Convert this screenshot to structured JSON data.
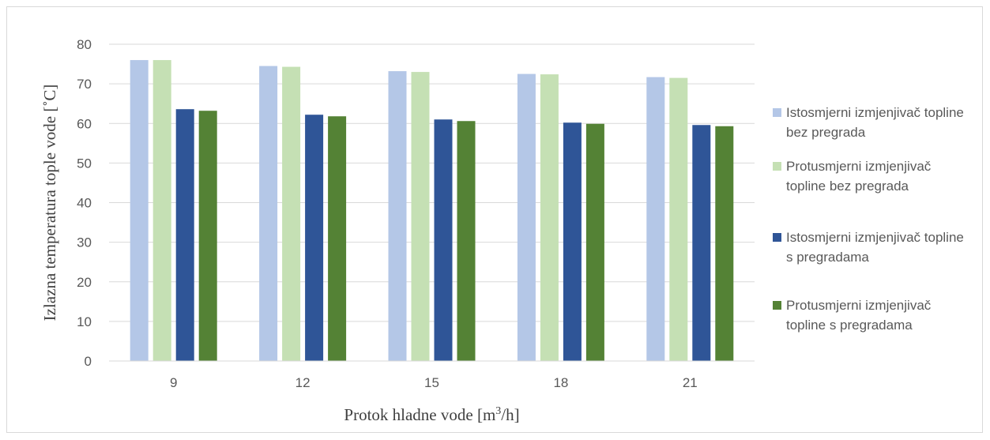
{
  "chart_data": {
    "type": "bar",
    "categories": [
      "9",
      "12",
      "15",
      "18",
      "21"
    ],
    "series": [
      {
        "name": "Istosmjerni izmjenjivač topline bez pregrada",
        "color": "#b4c7e7",
        "values": [
          76.0,
          74.5,
          73.2,
          72.5,
          71.7
        ]
      },
      {
        "name": "Protusmjerni izmjenjivač topline bez pregrada",
        "color": "#c5e0b4",
        "values": [
          76.0,
          74.3,
          73.0,
          72.4,
          71.5
        ]
      },
      {
        "name": "Istosmjerni izmjenjivač topline s pregradama",
        "color": "#2f5597",
        "values": [
          63.6,
          62.2,
          61.0,
          60.2,
          59.6
        ]
      },
      {
        "name": "Protusmjerni izmjenjivač topline s pregradama",
        "color": "#548235",
        "values": [
          63.2,
          61.8,
          60.6,
          59.9,
          59.3
        ]
      }
    ],
    "xlabel": "Protok hladne vode [m³/h]",
    "ylabel": "Izlazna temperatura tople vode [˚C]",
    "yticks": [
      "0",
      "10",
      "20",
      "30",
      "40",
      "50",
      "60",
      "70",
      "80"
    ],
    "ylim": [
      0,
      80
    ],
    "grid": true,
    "legend_position": "right"
  }
}
